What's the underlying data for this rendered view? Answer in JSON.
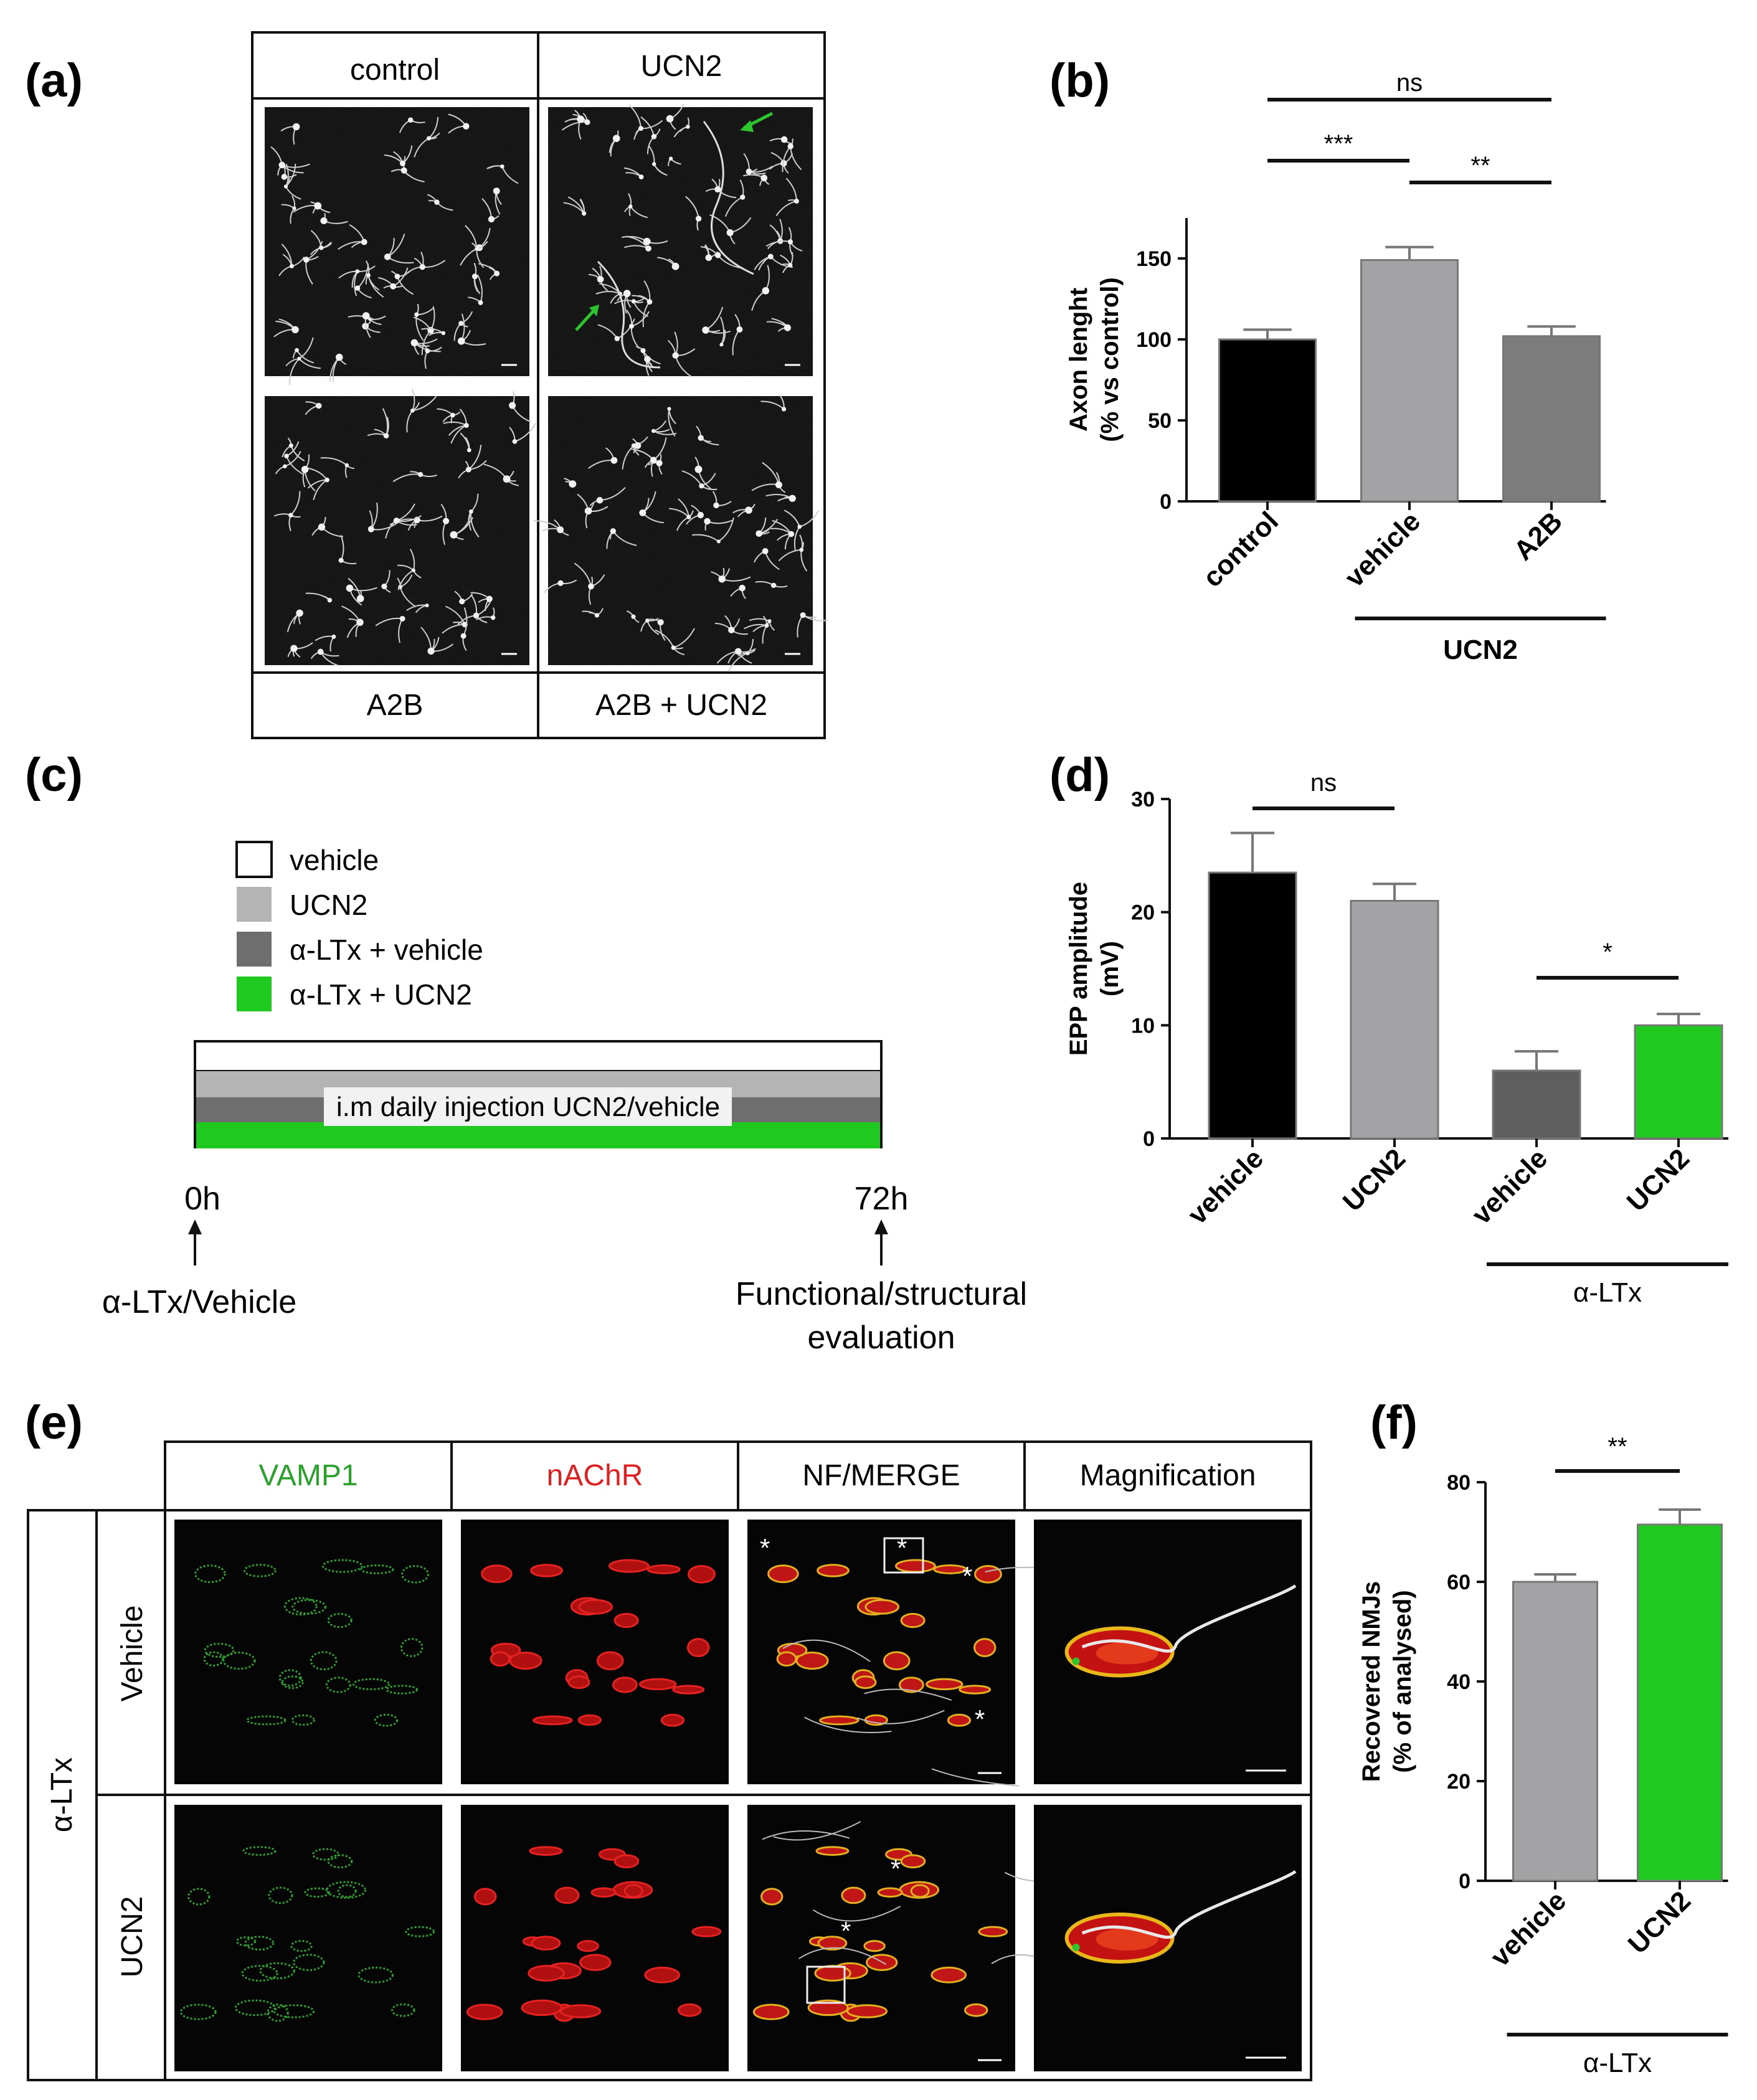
{
  "panels": {
    "a": {
      "letter": "(a)",
      "top_labels": [
        "control",
        "UCN2"
      ],
      "bottom_labels": [
        "A2B",
        "A2B + UCN2"
      ]
    },
    "b": {
      "letter": "(b)"
    },
    "c": {
      "letter": "(c)",
      "legend": [
        {
          "label": "vehicle",
          "color": "#ffffff"
        },
        {
          "label": "UCN2",
          "color": "#b4b4b4"
        },
        {
          "label": "α-LTx + vehicle",
          "color": "#6e6e6e"
        },
        {
          "label": "α-LTx + UCN2",
          "color": "#1fc91f"
        }
      ],
      "bar_label": "i.m daily injection UCN2/vehicle",
      "start_time": "0h",
      "end_time": "72h",
      "start_event": "α-LTx/Vehicle",
      "end_event_line1": "Functional/structural",
      "end_event_line2": "evaluation"
    },
    "d": {
      "letter": "(d)"
    },
    "e": {
      "letter": "(e)",
      "column_headers": [
        {
          "label": "VAMP1",
          "color": "#2aa12a"
        },
        {
          "label": "nAChR",
          "color": "#e02020"
        },
        {
          "label": "NF/MERGE",
          "color": "#222222"
        },
        {
          "label": "Magnification",
          "color": "#222222"
        }
      ],
      "group_label": "α-LTx",
      "row_labels": [
        "Vehicle",
        "UCN2"
      ]
    },
    "f": {
      "letter": "(f)"
    }
  },
  "chart_data": [
    {
      "id": "b",
      "type": "bar",
      "categories": [
        "control",
        "vehicle",
        "A2B"
      ],
      "values": [
        100,
        149,
        102
      ],
      "errors": [
        6,
        8,
        6
      ],
      "colors": [
        "#000000",
        "#a3a3a6",
        "#7c7c7c"
      ],
      "ylabel_line1": "Axon lenght",
      "ylabel_line2": "(% vs control)",
      "ylim": [
        0,
        175
      ],
      "yticks": [
        0,
        50,
        100,
        150
      ],
      "group_label": "UCN2",
      "significance": [
        {
          "from": 0,
          "to": 2,
          "label": "ns"
        },
        {
          "from": 0,
          "to": 1,
          "label": "***"
        },
        {
          "from": 1,
          "to": 2,
          "label": "**"
        }
      ]
    },
    {
      "id": "d",
      "type": "bar",
      "categories": [
        "vehicle",
        "UCN2",
        "vehicle",
        "UCN2"
      ],
      "values": [
        23.5,
        21,
        6,
        10
      ],
      "errors": [
        3.5,
        1.5,
        1.7,
        1
      ],
      "colors": [
        "#000000",
        "#a3a3a6",
        "#5e5e5e",
        "#1fc91f"
      ],
      "ylabel_line1": "EPP amplitude",
      "ylabel_line2": "(mV)",
      "ylim": [
        0,
        30
      ],
      "yticks": [
        0,
        10,
        20,
        30
      ],
      "group_label": "α-LTx",
      "significance": [
        {
          "from": 0,
          "to": 1,
          "label": "ns"
        },
        {
          "from": 2,
          "to": 3,
          "label": "*"
        }
      ]
    },
    {
      "id": "f",
      "type": "bar",
      "categories": [
        "vehicle",
        "UCN2"
      ],
      "values": [
        60,
        71.5
      ],
      "errors": [
        1.5,
        3
      ],
      "colors": [
        "#a3a3a6",
        "#1fc91f"
      ],
      "ylabel_line1": "Recovered NMJs",
      "ylabel_line2": "(% of analysed)",
      "ylim": [
        0,
        80
      ],
      "yticks": [
        0,
        20,
        40,
        60,
        80
      ],
      "group_label": "α-LTx",
      "significance": [
        {
          "from": 0,
          "to": 1,
          "label": "**"
        }
      ]
    }
  ]
}
